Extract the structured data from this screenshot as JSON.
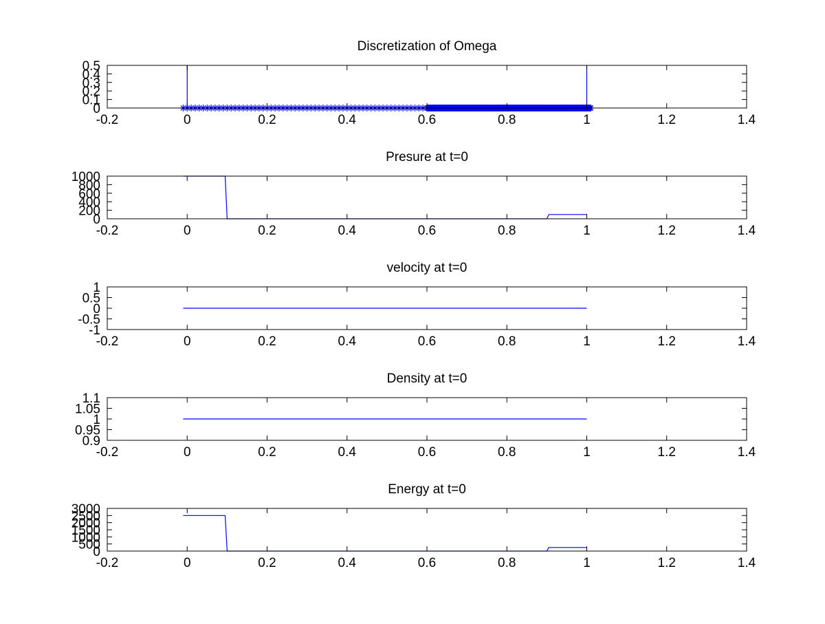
{
  "chart_data": [
    {
      "type": "line",
      "title": "Discretization of Omega",
      "xlim": [
        -0.2,
        1.4
      ],
      "ylim": [
        0,
        0.5
      ],
      "xticks": [
        "-0.2",
        "0",
        "0.2",
        "0.4",
        "0.6",
        "0.8",
        "1",
        "1.2",
        "1.4"
      ],
      "yticks": [
        "0",
        "0.1",
        "0.2",
        "0.3",
        "0.4",
        "0.5"
      ],
      "grid": false,
      "series": [
        {
          "color": "#0000ff",
          "marker": "line",
          "x": [
            -0.01,
            0,
            0,
            0,
            1,
            1,
            1,
            1.01
          ],
          "y": [
            0,
            0,
            0.5,
            0,
            0,
            0.5,
            0,
            0
          ]
        },
        {
          "color": "#0000ff",
          "marker": "asterisk",
          "segments": [
            {
              "start": -0.01,
              "end": 0.6,
              "step": 0.01
            },
            {
              "start": 0.6,
              "end": 1.01,
              "step": 0.002
            }
          ],
          "y_value": 0
        }
      ]
    },
    {
      "type": "line",
      "title": "Presure at t=0",
      "xlim": [
        -0.2,
        1.4
      ],
      "ylim": [
        0,
        1000
      ],
      "xticks": [
        "-0.2",
        "0",
        "0.2",
        "0.4",
        "0.6",
        "0.8",
        "1",
        "1.2",
        "1.4"
      ],
      "yticks": [
        "0",
        "200",
        "400",
        "600",
        "800",
        "1000"
      ],
      "grid": false,
      "series": [
        {
          "color": "#0000ff",
          "x": [
            -0.01,
            0.095,
            0.1,
            0.9,
            0.905,
            1.0
          ],
          "y": [
            1000,
            1000,
            0.01,
            0.01,
            100,
            100
          ]
        }
      ]
    },
    {
      "type": "line",
      "title": "velocity at t=0",
      "xlim": [
        -0.2,
        1.4
      ],
      "ylim": [
        -1,
        1
      ],
      "xticks": [
        "-0.2",
        "0",
        "0.2",
        "0.4",
        "0.6",
        "0.8",
        "1",
        "1.2",
        "1.4"
      ],
      "yticks": [
        "-1",
        "-0.5",
        "0",
        "0.5",
        "1"
      ],
      "grid": false,
      "series": [
        {
          "color": "#0000ff",
          "x": [
            -0.01,
            1.0
          ],
          "y": [
            0,
            0
          ]
        }
      ]
    },
    {
      "type": "line",
      "title": "Density at t=0",
      "xlim": [
        -0.2,
        1.4
      ],
      "ylim": [
        0.9,
        1.1
      ],
      "xticks": [
        "-0.2",
        "0",
        "0.2",
        "0.4",
        "0.6",
        "0.8",
        "1",
        "1.2",
        "1.4"
      ],
      "yticks": [
        "0.9",
        "0.95",
        "1",
        "1.05",
        "1.1"
      ],
      "grid": false,
      "series": [
        {
          "color": "#0000ff",
          "x": [
            -0.01,
            1.0
          ],
          "y": [
            1,
            1
          ]
        }
      ]
    },
    {
      "type": "line",
      "title": "Energy at t=0",
      "xlim": [
        -0.2,
        1.4
      ],
      "ylim": [
        0,
        3000
      ],
      "xticks": [
        "-0.2",
        "0",
        "0.2",
        "0.4",
        "0.6",
        "0.8",
        "1",
        "1.2",
        "1.4"
      ],
      "yticks": [
        "0",
        "500",
        "1000",
        "1500",
        "2000",
        "2500",
        "3000"
      ],
      "grid": false,
      "series": [
        {
          "color": "#0000ff",
          "x": [
            -0.01,
            0.095,
            0.1,
            0.9,
            0.905,
            1.0
          ],
          "y": [
            2500,
            2500,
            0.025,
            0.025,
            250,
            250
          ]
        }
      ]
    }
  ]
}
